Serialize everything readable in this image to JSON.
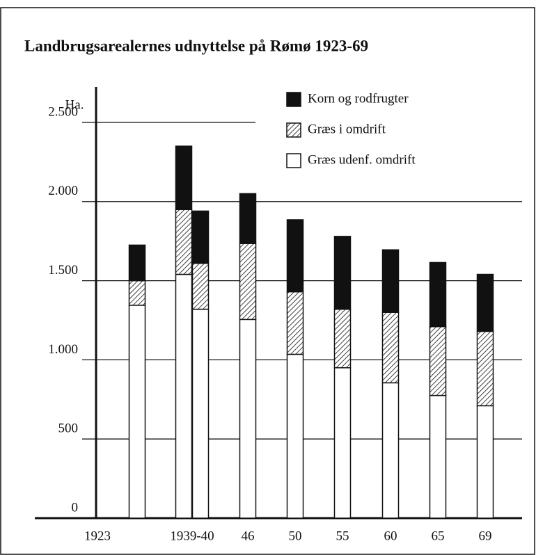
{
  "chart_data": {
    "type": "stacked_bar",
    "title": "Landbrugsarealernes udnyttelse på Rømø 1923-69",
    "y_label": "Ha.",
    "categories": [
      "1923",
      "1939-40",
      null,
      "46",
      "50",
      "55",
      "60",
      "65",
      "69"
    ],
    "series": [
      {
        "name": "Græs udenf. omdrift",
        "color": "#ffffff",
        "values": [
          1345,
          1540,
          1320,
          1255,
          1035,
          950,
          855,
          775,
          710
        ]
      },
      {
        "name": "Græs i omdrift",
        "color": "#111111",
        "hatch": true,
        "values": [
          155,
          410,
          290,
          480,
          395,
          370,
          445,
          435,
          470
        ]
      },
      {
        "name": "Korn og rodfrugter",
        "color": "#111111",
        "values": [
          225,
          400,
          330,
          315,
          455,
          460,
          395,
          405,
          360
        ]
      }
    ],
    "ylim": [
      0,
      2500
    ],
    "yticks": [
      0,
      500,
      {
        "value": 1000,
        "label": "1.000"
      },
      {
        "value": 1500,
        "label": "1.500"
      },
      {
        "value": 2000,
        "label": "2.000"
      },
      {
        "value": 2500,
        "label": "2.500"
      }
    ],
    "grid": true,
    "legend": "top-right"
  }
}
